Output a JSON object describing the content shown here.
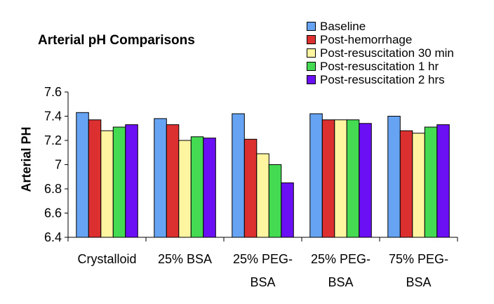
{
  "chart_data": {
    "type": "bar",
    "title": "Arterial pH Comparisons",
    "xlabel": "",
    "ylabel": "Arterial PH",
    "ylim": [
      6.4,
      7.6
    ],
    "yticks": [
      6.4,
      6.6,
      6.8,
      7,
      7.2,
      7.4,
      7.6
    ],
    "ytick_labels": [
      "6.4",
      "6.6",
      "6.8",
      "7",
      "7.2",
      "7.4",
      "7.6"
    ],
    "categories": [
      [
        "Crystalloid"
      ],
      [
        "25% BSA"
      ],
      [
        "25% PEG-",
        "BSA"
      ],
      [
        "25% PEG-",
        "BSA"
      ],
      [
        "75% PEG-",
        "BSA"
      ]
    ],
    "legend_position": "top-right",
    "grid": false,
    "series": [
      {
        "name": "Baseline",
        "color": "#66A3F2",
        "values": [
          7.43,
          7.38,
          7.42,
          7.42,
          7.4
        ]
      },
      {
        "name": "Post-hemorrhage",
        "color": "#DC2F2F",
        "values": [
          7.37,
          7.33,
          7.21,
          7.37,
          7.28
        ]
      },
      {
        "name": "Post-resuscitation 30 min",
        "color": "#FFF5A0",
        "values": [
          7.28,
          7.2,
          7.09,
          7.37,
          7.26
        ]
      },
      {
        "name": "Post-resuscitation 1 hr",
        "color": "#44DB52",
        "values": [
          7.31,
          7.23,
          7.0,
          7.37,
          7.31
        ]
      },
      {
        "name": "Post-resuscitation 2 hrs",
        "color": "#6B10F5",
        "values": [
          7.33,
          7.22,
          6.85,
          7.34,
          7.33
        ]
      }
    ]
  }
}
